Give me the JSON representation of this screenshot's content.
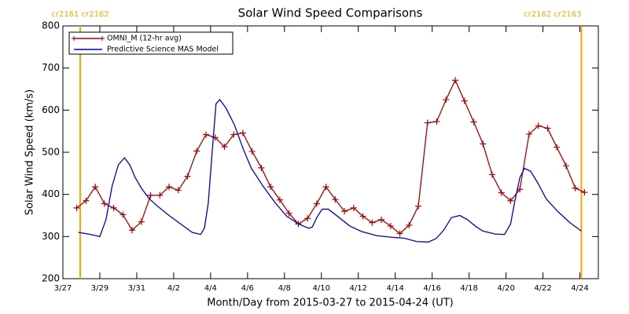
{
  "chart_data": {
    "type": "line",
    "title": "Solar Wind Speed Comparisons",
    "xlabel": "Month/Day from 2015-03-27 to 2015-04-24 (UT)",
    "ylabel": "Solar Wind Speed (km/s)",
    "xlim": [
      "2015-03-27T00:00",
      "2015-04-25T00:00"
    ],
    "xticks": [
      {
        "value": "2015-03-27T00:00",
        "label": "3/27"
      },
      {
        "value": "2015-03-29T00:00",
        "label": "3/29"
      },
      {
        "value": "2015-03-31T00:00",
        "label": "3/31"
      },
      {
        "value": "2015-04-02T00:00",
        "label": "4/2"
      },
      {
        "value": "2015-04-04T00:00",
        "label": "4/4"
      },
      {
        "value": "2015-04-06T00:00",
        "label": "4/6"
      },
      {
        "value": "2015-04-08T00:00",
        "label": "4/8"
      },
      {
        "value": "2015-04-10T00:00",
        "label": "4/10"
      },
      {
        "value": "2015-04-12T00:00",
        "label": "4/12"
      },
      {
        "value": "2015-04-14T00:00",
        "label": "4/14"
      },
      {
        "value": "2015-04-16T00:00",
        "label": "4/16"
      },
      {
        "value": "2015-04-18T00:00",
        "label": "4/18"
      },
      {
        "value": "2015-04-20T00:00",
        "label": "4/20"
      },
      {
        "value": "2015-04-22T00:00",
        "label": "4/22"
      },
      {
        "value": "2015-04-24T00:00",
        "label": "4/24"
      }
    ],
    "ylim": [
      200,
      800
    ],
    "yticks": [
      200,
      300,
      400,
      500,
      600,
      700,
      800
    ],
    "legend": "upper left",
    "annotations": [
      {
        "text": "cr2161 cr2162",
        "x": "2015-03-27T22:30",
        "color": "#ffa500"
      },
      {
        "text": "cr2162 cr2163",
        "x": "2015-04-24T02:00",
        "color": "#ffa500"
      }
    ],
    "series": [
      {
        "name": "OMNI_M (12-hr avg)",
        "color": "#b00000",
        "marker": "+",
        "x": [
          "2015-03-27T18:00",
          "2015-03-28T06:00",
          "2015-03-28T18:00",
          "2015-03-29T06:00",
          "2015-03-29T18:00",
          "2015-03-30T06:00",
          "2015-03-30T18:00",
          "2015-03-31T06:00",
          "2015-03-31T18:00",
          "2015-04-01T06:00",
          "2015-04-01T18:00",
          "2015-04-02T06:00",
          "2015-04-02T18:00",
          "2015-04-03T06:00",
          "2015-04-03T18:00",
          "2015-04-04T06:00",
          "2015-04-04T18:00",
          "2015-04-05T06:00",
          "2015-04-05T18:00",
          "2015-04-06T06:00",
          "2015-04-06T18:00",
          "2015-04-07T06:00",
          "2015-04-07T18:00",
          "2015-04-08T06:00",
          "2015-04-08T18:00",
          "2015-04-09T06:00",
          "2015-04-09T18:00",
          "2015-04-10T06:00",
          "2015-04-10T18:00",
          "2015-04-11T06:00",
          "2015-04-11T18:00",
          "2015-04-12T06:00",
          "2015-04-12T18:00",
          "2015-04-13T06:00",
          "2015-04-13T18:00",
          "2015-04-14T06:00",
          "2015-04-14T18:00",
          "2015-04-15T06:00",
          "2015-04-15T18:00",
          "2015-04-16T06:00",
          "2015-04-16T18:00",
          "2015-04-17T06:00",
          "2015-04-17T18:00",
          "2015-04-18T06:00",
          "2015-04-18T18:00",
          "2015-04-19T06:00",
          "2015-04-19T18:00",
          "2015-04-20T06:00",
          "2015-04-20T18:00",
          "2015-04-21T06:00",
          "2015-04-21T18:00",
          "2015-04-22T06:00",
          "2015-04-22T18:00",
          "2015-04-23T06:00",
          "2015-04-23T18:00",
          "2015-04-24T06:00"
        ],
        "values": [
          368,
          385,
          418,
          378,
          368,
          352,
          315,
          335,
          398,
          398,
          418,
          410,
          443,
          503,
          542,
          535,
          513,
          542,
          546,
          502,
          463,
          418,
          387,
          355,
          330,
          343,
          378,
          418,
          388,
          360,
          368,
          348,
          333,
          340,
          325,
          307,
          327,
          372,
          570,
          573,
          625,
          671,
          622,
          572,
          520,
          447,
          404,
          385,
          412,
          543,
          563,
          557,
          512,
          468,
          415,
          405
        ]
      },
      {
        "name": "Predictive Science MAS Model",
        "color": "#0000cc",
        "x": [
          "2015-03-27T20:00",
          "2015-03-28T12:00",
          "2015-03-29T00:00",
          "2015-03-29T08:00",
          "2015-03-29T16:00",
          "2015-03-30T00:00",
          "2015-03-30T08:00",
          "2015-03-30T15:00",
          "2015-03-30T22:00",
          "2015-03-31T06:00",
          "2015-03-31T16:00",
          "2015-04-01T03:00",
          "2015-04-01T18:00",
          "2015-04-02T09:00",
          "2015-04-03T00:00",
          "2015-04-03T11:00",
          "2015-04-03T16:00",
          "2015-04-03T21:00",
          "2015-04-04T02:00",
          "2015-04-04T07:00",
          "2015-04-04T12:00",
          "2015-04-04T20:00",
          "2015-04-05T07:00",
          "2015-04-05T19:00",
          "2015-04-06T05:00",
          "2015-04-06T20:00",
          "2015-04-07T12:00",
          "2015-04-08T03:00",
          "2015-04-08T18:00",
          "2015-04-09T07:00",
          "2015-04-09T12:00",
          "2015-04-09T18:00",
          "2015-04-10T01:00",
          "2015-04-10T09:00",
          "2015-04-10T21:00",
          "2015-04-11T13:00",
          "2015-04-12T04:00",
          "2015-04-13T00:00",
          "2015-04-13T21:00",
          "2015-04-14T12:00",
          "2015-04-15T04:00",
          "2015-04-15T19:00",
          "2015-04-16T05:00",
          "2015-04-16T15:00",
          "2015-04-17T01:00",
          "2015-04-17T12:00",
          "2015-04-17T22:00",
          "2015-04-18T08:00",
          "2015-04-18T18:00",
          "2015-04-19T10:00",
          "2015-04-19T22:00",
          "2015-04-20T06:00",
          "2015-04-20T11:00",
          "2015-04-20T18:00",
          "2015-04-21T00:00",
          "2015-04-21T08:00",
          "2015-04-21T18:00",
          "2015-04-22T04:00",
          "2015-04-22T19:00",
          "2015-04-23T11:00",
          "2015-04-24T02:00"
        ],
        "values": [
          310,
          305,
          300,
          340,
          420,
          470,
          487,
          470,
          440,
          415,
          390,
          372,
          350,
          330,
          310,
          305,
          320,
          380,
          500,
          615,
          625,
          605,
          565,
          505,
          462,
          420,
          380,
          348,
          330,
          320,
          322,
          345,
          365,
          365,
          348,
          325,
          312,
          302,
          298,
          296,
          288,
          287,
          295,
          315,
          345,
          350,
          340,
          325,
          313,
          306,
          305,
          330,
          380,
          440,
          462,
          455,
          425,
          390,
          360,
          333,
          313
        ]
      }
    ]
  }
}
